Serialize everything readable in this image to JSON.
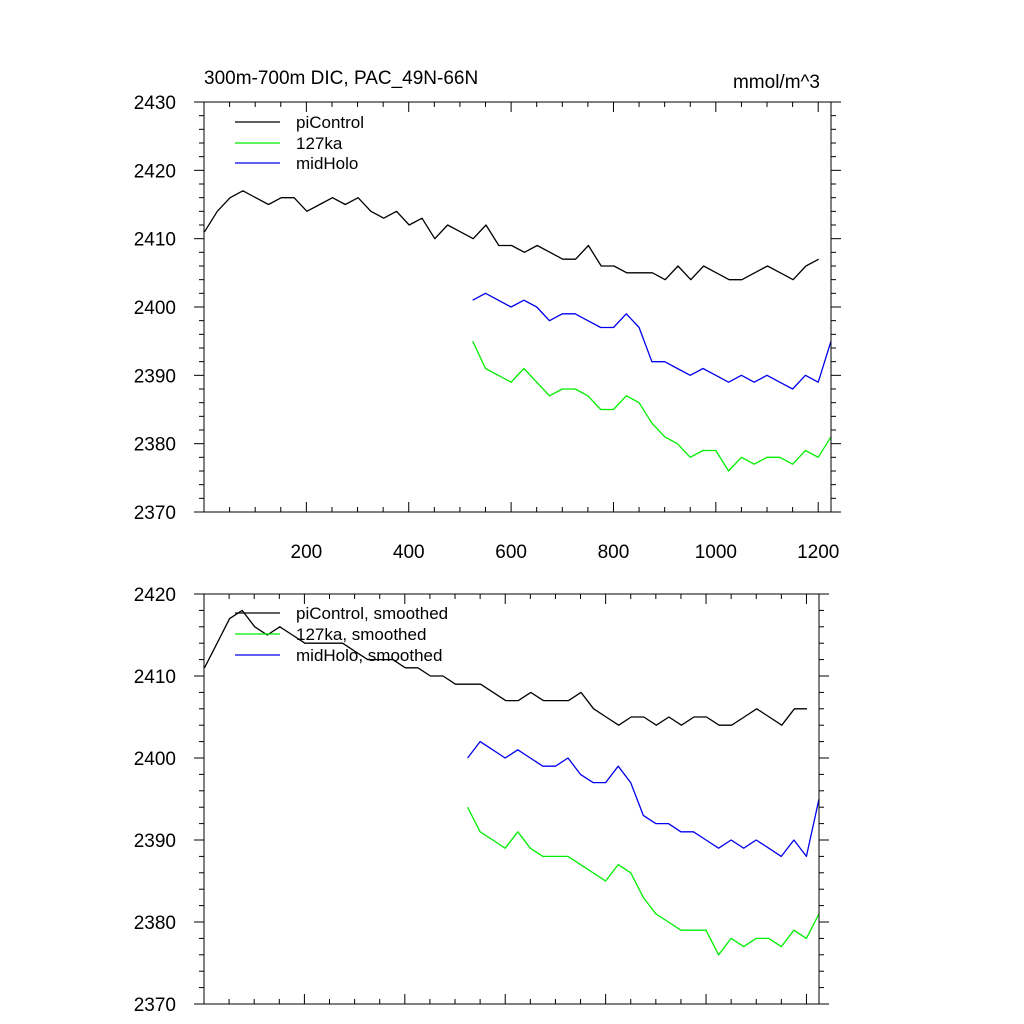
{
  "chart_data": [
    {
      "type": "line",
      "title": "300m-700m DIC, PAC_49N-66N",
      "units": "mmol/m^3",
      "xlim": [
        0,
        1225
      ],
      "ylim": [
        2370,
        2430
      ],
      "xticks": [
        200,
        400,
        600,
        800,
        1000,
        1200
      ],
      "xtick_labels": [
        "200",
        "400",
        "600",
        "800",
        "1000",
        "1200"
      ],
      "yticks": [
        2370,
        2380,
        2390,
        2400,
        2410,
        2420,
        2430
      ],
      "ytick_labels": [
        "2370",
        "2380",
        "2390",
        "2400",
        "2410",
        "2420",
        "2430"
      ],
      "legend_position": "top-left",
      "series": [
        {
          "name": "piControl",
          "color": "#000000",
          "x_start": 1,
          "step": 25,
          "values": [
            2411,
            2414,
            2416,
            2417,
            2416,
            2415,
            2416,
            2416,
            2414,
            2415,
            2416,
            2415,
            2416,
            2414,
            2413,
            2414,
            2412,
            2413,
            2410,
            2412,
            2411,
            2410,
            2412,
            2409,
            2409,
            2408,
            2409,
            2408,
            2407,
            2407,
            2409,
            2406,
            2406,
            2405,
            2405,
            2405,
            2404,
            2406,
            2404,
            2406,
            2405,
            2404,
            2404,
            2405,
            2406,
            2405,
            2404,
            2406,
            2407
          ]
        },
        {
          "name": "127ka",
          "color": "#00ee00",
          "x_start": 525,
          "step": 25,
          "values": [
            2395,
            2391,
            2390,
            2389,
            2391,
            2389,
            2387,
            2388,
            2388,
            2387,
            2385,
            2385,
            2387,
            2386,
            2383,
            2381,
            2380,
            2378,
            2379,
            2379,
            2376,
            2378,
            2377,
            2378,
            2378,
            2377,
            2379,
            2378,
            2381
          ]
        },
        {
          "name": "midHolo",
          "color": "#0000ee",
          "x_start": 525,
          "step": 25,
          "values": [
            2401,
            2402,
            2401,
            2400,
            2401,
            2400,
            2398,
            2399,
            2399,
            2398,
            2397,
            2397,
            2399,
            2397,
            2392,
            2392,
            2391,
            2390,
            2391,
            2390,
            2389,
            2390,
            2389,
            2390,
            2389,
            2388,
            2390,
            2389,
            2395
          ]
        }
      ]
    },
    {
      "type": "line",
      "xlim": [
        0,
        1225
      ],
      "ylim": [
        2370,
        2420
      ],
      "xticks": [
        200,
        400,
        600,
        800,
        1000,
        1200
      ],
      "yticks": [
        2370,
        2380,
        2390,
        2400,
        2410,
        2420
      ],
      "ytick_labels": [
        "2370",
        "2380",
        "2390",
        "2400",
        "2410",
        "2420"
      ],
      "legend_position": "top-left",
      "series": [
        {
          "name": "piControl, smoothed",
          "color": "#000000",
          "x_start": 1,
          "step": 25,
          "values": [
            2411,
            2414,
            2417,
            2418,
            2416,
            2415,
            2416,
            2415,
            2414,
            2414,
            2414,
            2414,
            2413,
            2412,
            2412,
            2412,
            2411,
            2411,
            2410,
            2410,
            2409,
            2409,
            2409,
            2408,
            2407,
            2407,
            2408,
            2407,
            2407,
            2407,
            2408,
            2406,
            2405,
            2404,
            2405,
            2405,
            2404,
            2405,
            2404,
            2405,
            2405,
            2404,
            2404,
            2405,
            2406,
            2405,
            2404,
            2406,
            2406
          ]
        },
        {
          "name": "127ka, smoothed",
          "color": "#00ee00",
          "x_start": 525,
          "step": 25,
          "values": [
            2394,
            2391,
            2390,
            2389,
            2391,
            2389,
            2388,
            2388,
            2388,
            2387,
            2386,
            2385,
            2387,
            2386,
            2383,
            2381,
            2380,
            2379,
            2379,
            2379,
            2376,
            2378,
            2377,
            2378,
            2378,
            2377,
            2379,
            2378,
            2381
          ]
        },
        {
          "name": "midHolo, smoothed",
          "color": "#0000ee",
          "x_start": 525,
          "step": 25,
          "values": [
            2400,
            2402,
            2401,
            2400,
            2401,
            2400,
            2399,
            2399,
            2400,
            2398,
            2397,
            2397,
            2399,
            2397,
            2393,
            2392,
            2392,
            2391,
            2391,
            2390,
            2389,
            2390,
            2389,
            2390,
            2389,
            2388,
            2390,
            2388,
            2395
          ]
        }
      ]
    }
  ]
}
